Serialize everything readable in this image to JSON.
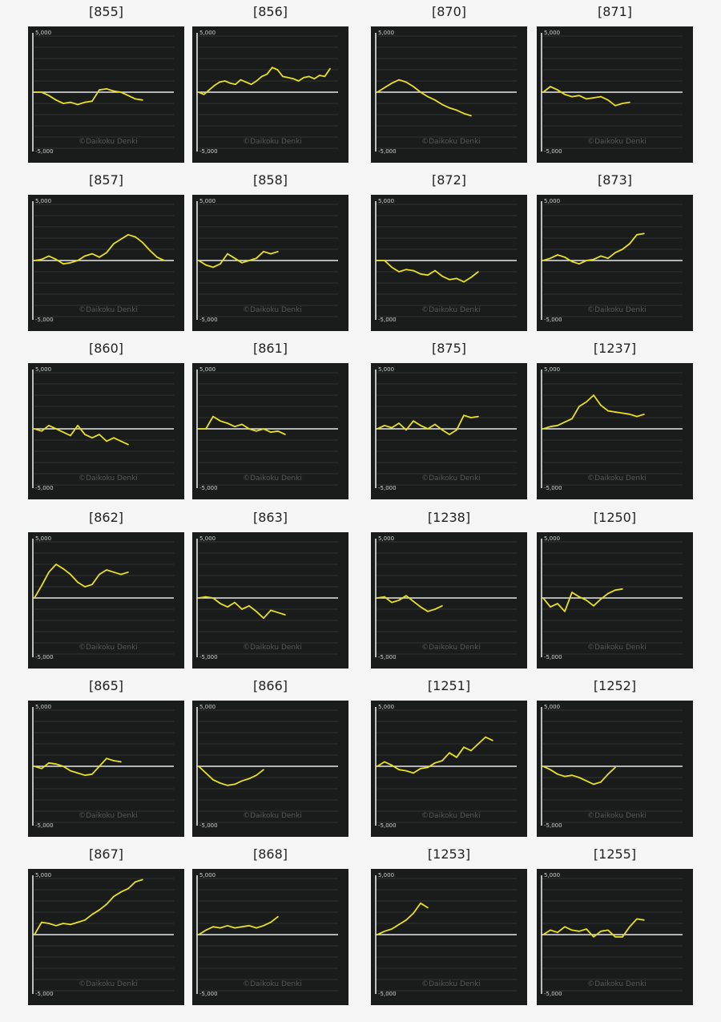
{
  "axis": {
    "ymax_label": "5,000",
    "ymin_label": "-5,000",
    "ylim": [
      -5000,
      5000
    ]
  },
  "watermark": "©Daikoku Denki",
  "colors": {
    "background": "#f5f5f5",
    "panel": "#1a1c1c",
    "series": "#e8e020",
    "zero_line": "#e6e6e6",
    "grid": "#3a3d3d"
  },
  "chart_data": [
    {
      "type": "line",
      "title": "[855]",
      "y": [
        0,
        0,
        -300,
        -700,
        -1000,
        -900,
        -1100,
        -900,
        -800,
        200,
        300,
        100,
        0,
        -300,
        -600,
        -700
      ]
    },
    {
      "type": "line",
      "title": "[856]",
      "y": [
        0,
        -200,
        200,
        600,
        900,
        1000,
        800,
        700,
        1100,
        900,
        700,
        1000,
        1400,
        1600,
        2200,
        2000,
        1400,
        1300,
        1200,
        1000,
        1300,
        1400,
        1200,
        1500,
        1400,
        2100
      ]
    },
    {
      "type": "line",
      "title": "[870]",
      "y": [
        0,
        400,
        800,
        1100,
        900,
        500,
        0,
        -400,
        -700,
        -1100,
        -1400,
        -1600,
        -1900,
        -2100
      ]
    },
    {
      "type": "line",
      "title": "[871]",
      "y": [
        0,
        500,
        200,
        -200,
        -400,
        -300,
        -600,
        -500,
        -400,
        -700,
        -1200,
        -1000,
        -900
      ]
    },
    {
      "type": "line",
      "title": "[857]",
      "y": [
        0,
        100,
        400,
        100,
        -300,
        -200,
        0,
        400,
        600,
        300,
        700,
        1500,
        1900,
        2300,
        2100,
        1600,
        900,
        300,
        0
      ]
    },
    {
      "type": "line",
      "title": "[858]",
      "y": [
        0,
        -400,
        -600,
        -300,
        600,
        200,
        -200,
        0,
        200,
        800,
        600,
        800
      ]
    },
    {
      "type": "line",
      "title": "[872]",
      "y": [
        0,
        0,
        -600,
        -1000,
        -800,
        -900,
        -1200,
        -1300,
        -900,
        -1400,
        -1700,
        -1600,
        -1900,
        -1500,
        -1000
      ]
    },
    {
      "type": "line",
      "title": "[873]",
      "y": [
        0,
        200,
        500,
        300,
        -100,
        -300,
        0,
        100,
        400,
        200,
        700,
        1000,
        1500,
        2300,
        2400
      ]
    },
    {
      "type": "line",
      "title": "[860]",
      "y": [
        0,
        -200,
        300,
        0,
        -300,
        -600,
        300,
        -500,
        -800,
        -500,
        -1100,
        -800,
        -1100,
        -1400
      ]
    },
    {
      "type": "line",
      "title": "[861]",
      "y": [
        0,
        0,
        1100,
        700,
        500,
        200,
        400,
        0,
        -200,
        0,
        -300,
        -200,
        -500
      ]
    },
    {
      "type": "line",
      "title": "[875]",
      "y": [
        0,
        300,
        100,
        500,
        -100,
        700,
        300,
        0,
        400,
        -100,
        -500,
        -100,
        1200,
        1000,
        1100
      ]
    },
    {
      "type": "line",
      "title": "[1237]",
      "y": [
        0,
        200,
        300,
        600,
        900,
        2000,
        2400,
        3000,
        2100,
        1600,
        1500,
        1400,
        1300,
        1100,
        1300
      ]
    },
    {
      "type": "line",
      "title": "[862]",
      "y": [
        0,
        1100,
        2300,
        3000,
        2600,
        2100,
        1400,
        1000,
        1200,
        2100,
        2500,
        2300,
        2100,
        2300
      ]
    },
    {
      "type": "line",
      "title": "[863]",
      "y": [
        0,
        100,
        0,
        -500,
        -800,
        -400,
        -1000,
        -700,
        -1200,
        -1800,
        -1100,
        -1300,
        -1500
      ]
    },
    {
      "type": "line",
      "title": "[1238]",
      "y": [
        0,
        100,
        -400,
        -200,
        200,
        -300,
        -800,
        -1200,
        -1000,
        -700
      ]
    },
    {
      "type": "line",
      "title": "[1250]",
      "y": [
        0,
        -800,
        -500,
        -1200,
        500,
        100,
        -200,
        -700,
        -100,
        400,
        700,
        800
      ]
    },
    {
      "type": "line",
      "title": "[865]",
      "y": [
        0,
        -200,
        300,
        200,
        0,
        -400,
        -600,
        -800,
        -700,
        0,
        700,
        500,
        400
      ]
    },
    {
      "type": "line",
      "title": "[866]",
      "y": [
        0,
        -600,
        -1200,
        -1500,
        -1700,
        -1600,
        -1300,
        -1100,
        -800,
        -300
      ]
    },
    {
      "type": "line",
      "title": "[1251]",
      "y": [
        0,
        400,
        100,
        -300,
        -400,
        -600,
        -200,
        -100,
        300,
        500,
        1200,
        800,
        1700,
        1400,
        2000,
        2600,
        2300
      ]
    },
    {
      "type": "line",
      "title": "[1252]",
      "y": [
        0,
        -300,
        -700,
        -900,
        -800,
        -1000,
        -1300,
        -1600,
        -1400,
        -700,
        -100
      ]
    },
    {
      "type": "line",
      "title": "[867]",
      "y": [
        0,
        1100,
        1000,
        800,
        1000,
        900,
        1100,
        1300,
        1800,
        2200,
        2700,
        3400,
        3800,
        4100,
        4700,
        4900
      ]
    },
    {
      "type": "line",
      "title": "[868]",
      "y": [
        0,
        400,
        700,
        600,
        800,
        600,
        700,
        800,
        600,
        800,
        1100,
        1600
      ]
    },
    {
      "type": "line",
      "title": "[1253]",
      "y": [
        0,
        300,
        500,
        900,
        1300,
        1900,
        2800,
        2400
      ]
    },
    {
      "type": "line",
      "title": "[1255]",
      "y": [
        0,
        400,
        200,
        700,
        400,
        300,
        500,
        -200,
        300,
        400,
        -200,
        -200,
        700,
        1400,
        1300
      ]
    }
  ]
}
